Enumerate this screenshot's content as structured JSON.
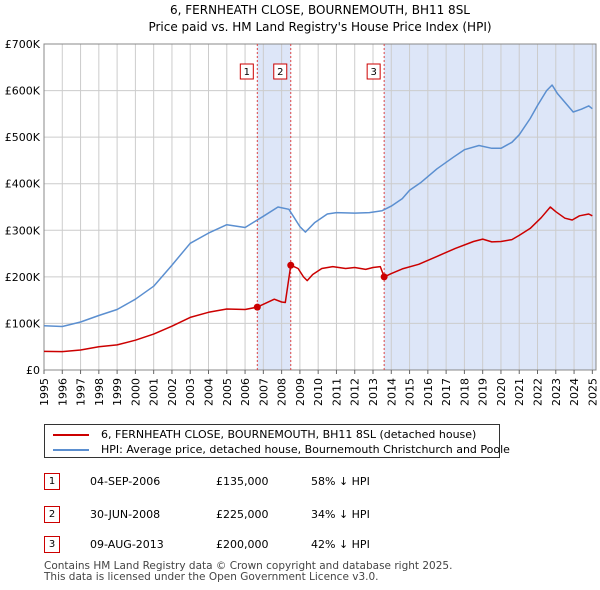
{
  "chart_data": {
    "type": "line",
    "title": "6, FERNHEATH CLOSE, BOURNEMOUTH, BH11 8SL",
    "subtitle": "Price paid vs. HM Land Registry's House Price Index (HPI)",
    "xlabel": "",
    "ylabel": "",
    "xlim": [
      1995,
      2025.2
    ],
    "ylim": [
      0,
      700000
    ],
    "y_ticks": [
      0,
      100000,
      200000,
      300000,
      400000,
      500000,
      600000,
      700000
    ],
    "y_tick_labels": [
      "£0",
      "£100K",
      "£200K",
      "£300K",
      "£400K",
      "£500K",
      "£600K",
      "£700K"
    ],
    "x_ticks": [
      1995,
      1996,
      1997,
      1998,
      1999,
      2000,
      2001,
      2002,
      2003,
      2004,
      2005,
      2006,
      2007,
      2008,
      2009,
      2010,
      2011,
      2012,
      2013,
      2014,
      2015,
      2016,
      2017,
      2018,
      2019,
      2020,
      2021,
      2022,
      2023,
      2024,
      2025
    ],
    "x_tick_labels": [
      "1995",
      "1996",
      "1997",
      "1998",
      "1999",
      "2000",
      "2001",
      "2002",
      "2003",
      "2004",
      "2005",
      "2006",
      "2007",
      "2008",
      "2009",
      "2010",
      "2011",
      "2012",
      "2013",
      "2014",
      "2015",
      "2016",
      "2017",
      "2018",
      "2019",
      "2020",
      "2021",
      "2022",
      "2023",
      "2024",
      "2025"
    ],
    "grid": true,
    "legend_position": "below",
    "series": [
      {
        "name": "6, FERNHEATH CLOSE, BOURNEMOUTH, BH11 8SL (detached house)",
        "color": "#cc0000",
        "points": [
          [
            1995.0,
            40000
          ],
          [
            1996.0,
            39500
          ],
          [
            1997.0,
            43000
          ],
          [
            1998.0,
            50000
          ],
          [
            1999.0,
            54000
          ],
          [
            2000.0,
            64000
          ],
          [
            2001.0,
            77000
          ],
          [
            2002.0,
            94000
          ],
          [
            2003.0,
            113000
          ],
          [
            2004.0,
            124000
          ],
          [
            2005.0,
            131000
          ],
          [
            2006.0,
            130000
          ],
          [
            2006.67,
            135000
          ],
          [
            2007.0,
            141000
          ],
          [
            2007.6,
            152000
          ],
          [
            2008.0,
            146000
          ],
          [
            2008.2,
            145000
          ],
          [
            2008.5,
            225000
          ],
          [
            2008.9,
            218000
          ],
          [
            2009.2,
            200000
          ],
          [
            2009.4,
            192000
          ],
          [
            2009.7,
            205000
          ],
          [
            2010.2,
            218000
          ],
          [
            2010.8,
            222000
          ],
          [
            2011.5,
            218000
          ],
          [
            2012.0,
            220000
          ],
          [
            2012.6,
            216000
          ],
          [
            2013.0,
            220000
          ],
          [
            2013.4,
            222000
          ],
          [
            2013.61,
            200000
          ],
          [
            2014.0,
            207000
          ],
          [
            2014.6,
            217000
          ],
          [
            2015.5,
            227000
          ],
          [
            2016.5,
            244000
          ],
          [
            2017.5,
            261000
          ],
          [
            2018.5,
            276000
          ],
          [
            2019.0,
            281000
          ],
          [
            2019.5,
            275000
          ],
          [
            2020.0,
            276000
          ],
          [
            2020.6,
            280000
          ],
          [
            2021.0,
            289000
          ],
          [
            2021.6,
            304000
          ],
          [
            2022.2,
            327000
          ],
          [
            2022.7,
            350000
          ],
          [
            2023.0,
            340000
          ],
          [
            2023.5,
            326000
          ],
          [
            2023.9,
            322000
          ],
          [
            2024.3,
            331000
          ],
          [
            2024.8,
            335000
          ],
          [
            2025.0,
            331000
          ]
        ],
        "sales": [
          {
            "label": "1",
            "x": 2006.67,
            "y": 135000
          },
          {
            "label": "2",
            "x": 2008.5,
            "y": 225000
          },
          {
            "label": "3",
            "x": 2013.61,
            "y": 200000
          }
        ]
      },
      {
        "name": "HPI: Average price, detached house, Bournemouth Christchurch and Poole",
        "color": "#5b8fd0",
        "points": [
          [
            1995.0,
            95000
          ],
          [
            1996.0,
            93500
          ],
          [
            1997.0,
            103000
          ],
          [
            1998.0,
            117000
          ],
          [
            1999.0,
            130000
          ],
          [
            2000.0,
            152000
          ],
          [
            2001.0,
            180000
          ],
          [
            2002.0,
            225000
          ],
          [
            2003.0,
            272000
          ],
          [
            2004.0,
            294000
          ],
          [
            2005.0,
            312000
          ],
          [
            2006.0,
            306000
          ],
          [
            2007.0,
            330000
          ],
          [
            2007.8,
            350000
          ],
          [
            2008.4,
            345000
          ],
          [
            2009.0,
            308000
          ],
          [
            2009.3,
            296000
          ],
          [
            2009.8,
            316000
          ],
          [
            2010.5,
            335000
          ],
          [
            2011.0,
            338000
          ],
          [
            2012.0,
            337000
          ],
          [
            2012.8,
            338000
          ],
          [
            2013.5,
            342000
          ],
          [
            2014.0,
            352000
          ],
          [
            2014.6,
            368000
          ],
          [
            2015.0,
            386000
          ],
          [
            2015.6,
            402000
          ],
          [
            2016.5,
            432000
          ],
          [
            2017.4,
            457000
          ],
          [
            2018.0,
            473000
          ],
          [
            2018.8,
            482000
          ],
          [
            2019.5,
            476000
          ],
          [
            2020.0,
            476000
          ],
          [
            2020.6,
            489000
          ],
          [
            2021.0,
            505000
          ],
          [
            2021.6,
            540000
          ],
          [
            2022.0,
            568000
          ],
          [
            2022.5,
            600000
          ],
          [
            2022.8,
            612000
          ],
          [
            2023.1,
            593000
          ],
          [
            2023.6,
            570000
          ],
          [
            2023.95,
            554000
          ],
          [
            2024.4,
            560000
          ],
          [
            2024.8,
            567000
          ],
          [
            2025.0,
            561000
          ]
        ]
      }
    ],
    "highlight_regions": [
      [
        2006.67,
        2008.5
      ],
      [
        2013.61,
        2025.2
      ]
    ]
  },
  "legend": {
    "property_label": "6, FERNHEATH CLOSE, BOURNEMOUTH, BH11 8SL (detached house)",
    "hpi_label": "HPI: Average price, detached house, Bournemouth Christchurch and Poole"
  },
  "sales_table": [
    {
      "num": "1",
      "date": "04-SEP-2006",
      "price": "£135,000",
      "hpi": "58% ↓ HPI"
    },
    {
      "num": "2",
      "date": "30-JUN-2008",
      "price": "£225,000",
      "hpi": "34% ↓ HPI"
    },
    {
      "num": "3",
      "date": "09-AUG-2013",
      "price": "£200,000",
      "hpi": "42% ↓ HPI"
    }
  ],
  "footer": {
    "line1": "Contains HM Land Registry data © Crown copyright and database right 2025.",
    "line2": "This data is licensed under the Open Government Licence v3.0."
  },
  "colors": {
    "property": "#cc0000",
    "hpi": "#5b8fd0",
    "highlight": "#dde6f8",
    "grid": "#cccccc",
    "sale_line": "#dd4444"
  }
}
